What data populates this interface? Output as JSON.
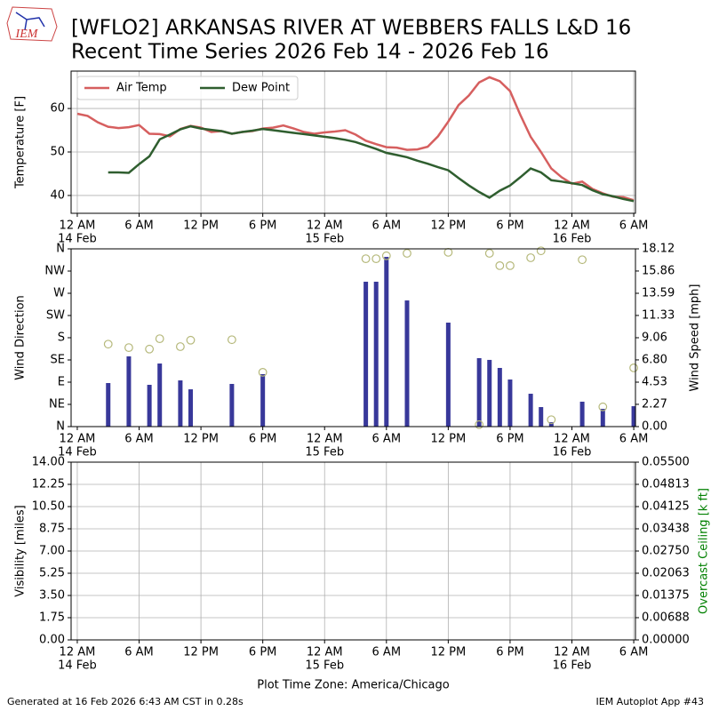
{
  "header": {
    "logo_text": "IEM",
    "title": [
      "[WFLO2] ARKANSAS RIVER  AT WEBBERS FALLS L&D 16",
      "Recent Time Series 2026 Feb 14 - 2026 Feb 16"
    ]
  },
  "footer": {
    "left": "Generated at 16 Feb 2026 6:43 AM CST in 0.28s",
    "right": "IEM Autoplot App #43"
  },
  "chart_data": [
    {
      "type": "line",
      "ylabel": "Temperature [F]",
      "grid": true,
      "legend": "upper left",
      "xlim": [
        "2026-02-13T23:24",
        "2026-02-16T06:10"
      ],
      "xticks": [
        {
          "value": "2026-02-14T00:00",
          "label": "12 AM",
          "date": "14 Feb"
        },
        {
          "value": "2026-02-14T06:00",
          "label": "6 AM"
        },
        {
          "value": "2026-02-14T12:00",
          "label": "12 PM"
        },
        {
          "value": "2026-02-14T18:00",
          "label": "6 PM"
        },
        {
          "value": "2026-02-15T00:00",
          "label": "12 AM",
          "date": "15 Feb"
        },
        {
          "value": "2026-02-15T06:00",
          "label": "6 AM"
        },
        {
          "value": "2026-02-15T12:00",
          "label": "12 PM"
        },
        {
          "value": "2026-02-15T18:00",
          "label": "6 PM"
        },
        {
          "value": "2026-02-16T00:00",
          "label": "12 AM",
          "date": "16 Feb"
        },
        {
          "value": "2026-02-16T06:00",
          "label": "6 AM"
        }
      ],
      "ylim": [
        35.9,
        68.6
      ],
      "yticks": [
        40,
        50,
        60
      ],
      "x": [
        "2026-02-14T00:00",
        "2026-02-14T01:00",
        "2026-02-14T02:00",
        "2026-02-14T03:00",
        "2026-02-14T04:00",
        "2026-02-14T05:00",
        "2026-02-14T06:00",
        "2026-02-14T07:00",
        "2026-02-14T08:00",
        "2026-02-14T09:00",
        "2026-02-14T10:00",
        "2026-02-14T11:00",
        "2026-02-14T12:00",
        "2026-02-14T13:00",
        "2026-02-14T14:00",
        "2026-02-14T15:00",
        "2026-02-14T16:00",
        "2026-02-14T17:00",
        "2026-02-14T18:00",
        "2026-02-14T19:00",
        "2026-02-14T20:00",
        "2026-02-14T21:00",
        "2026-02-14T22:00",
        "2026-02-14T23:00",
        "2026-02-15T00:00",
        "2026-02-15T01:00",
        "2026-02-15T02:00",
        "2026-02-15T03:00",
        "2026-02-15T04:00",
        "2026-02-15T05:00",
        "2026-02-15T06:00",
        "2026-02-15T07:00",
        "2026-02-15T08:00",
        "2026-02-15T09:00",
        "2026-02-15T10:00",
        "2026-02-15T11:00",
        "2026-02-15T12:00",
        "2026-02-15T13:00",
        "2026-02-15T14:00",
        "2026-02-15T15:00",
        "2026-02-15T16:00",
        "2026-02-15T17:00",
        "2026-02-15T18:00",
        "2026-02-15T19:00",
        "2026-02-15T20:00",
        "2026-02-15T21:00",
        "2026-02-15T22:00",
        "2026-02-15T23:00",
        "2026-02-16T00:00",
        "2026-02-16T01:00",
        "2026-02-16T02:00",
        "2026-02-16T03:00",
        "2026-02-16T04:00",
        "2026-02-16T05:00",
        "2026-02-16T06:00"
      ],
      "series": [
        {
          "name": "Air Temp",
          "color": "#d65f5f",
          "values": [
            58.8,
            58.3,
            56.8,
            55.8,
            55.5,
            55.7,
            56.2,
            54.2,
            54.1,
            53.6,
            55.3,
            56.0,
            55.6,
            54.6,
            54.8,
            54.2,
            54.6,
            54.8,
            55.4,
            55.6,
            56.1,
            55.4,
            54.6,
            54.2,
            54.5,
            54.7,
            55.0,
            54.0,
            52.6,
            51.8,
            51.1,
            51.0,
            50.5,
            50.6,
            51.2,
            53.6,
            57.0,
            60.8,
            63.0,
            66.0,
            67.2,
            66.3,
            64.0,
            58.5,
            53.5,
            50.0,
            46.2,
            44.2,
            42.7,
            43.2,
            41.5,
            40.5,
            39.7,
            39.6,
            38.9
          ]
        },
        {
          "name": "Dew Point",
          "color": "#2f5e2f",
          "values": [
            null,
            null,
            null,
            45.3,
            45.3,
            45.2,
            47.2,
            49.0,
            52.9,
            54.0,
            55.2,
            55.9,
            55.4,
            55.1,
            54.8,
            54.2,
            54.6,
            54.9,
            55.3,
            55.0,
            54.7,
            54.4,
            54.1,
            53.8,
            53.5,
            53.2,
            52.8,
            52.3,
            51.5,
            50.7,
            49.8,
            49.3,
            48.8,
            48.0,
            47.3,
            46.5,
            45.8,
            44.0,
            42.3,
            40.8,
            39.5,
            41.1,
            42.3,
            44.2,
            46.2,
            45.3,
            43.5,
            43.2,
            42.8,
            42.4,
            41.2,
            40.3,
            39.8,
            39.2,
            38.7
          ]
        }
      ]
    },
    {
      "type": "bar",
      "ylabel": "Wind Direction",
      "y2label": "Wind Speed [mph]",
      "grid": false,
      "xlim": [
        "2026-02-13T23:24",
        "2026-02-16T06:10"
      ],
      "xticks": [
        {
          "value": "2026-02-14T00:00",
          "label": "12 AM",
          "date": "14 Feb"
        },
        {
          "value": "2026-02-14T06:00",
          "label": "6 AM"
        },
        {
          "value": "2026-02-14T12:00",
          "label": "12 PM"
        },
        {
          "value": "2026-02-14T18:00",
          "label": "6 PM"
        },
        {
          "value": "2026-02-15T00:00",
          "label": "12 AM",
          "date": "15 Feb"
        },
        {
          "value": "2026-02-15T06:00",
          "label": "6 AM"
        },
        {
          "value": "2026-02-15T12:00",
          "label": "12 PM"
        },
        {
          "value": "2026-02-15T18:00",
          "label": "6 PM"
        },
        {
          "value": "2026-02-16T00:00",
          "label": "12 AM",
          "date": "16 Feb"
        },
        {
          "value": "2026-02-16T06:00",
          "label": "6 AM"
        }
      ],
      "ylim": [
        0,
        360
      ],
      "yticks": [
        {
          "value": 0,
          "label": "N"
        },
        {
          "value": 45,
          "label": "NE"
        },
        {
          "value": 90,
          "label": "E"
        },
        {
          "value": 135,
          "label": "SE"
        },
        {
          "value": 180,
          "label": "S"
        },
        {
          "value": 225,
          "label": "SW"
        },
        {
          "value": 270,
          "label": "W"
        },
        {
          "value": 315,
          "label": "NW"
        },
        {
          "value": 360,
          "label": "N"
        }
      ],
      "y2lim": [
        0,
        18.12
      ],
      "y2ticks": [
        {
          "value": 0,
          "label": "0.00"
        },
        {
          "value": 2.27,
          "label": "2.27"
        },
        {
          "value": 4.53,
          "label": "4.53"
        },
        {
          "value": 6.8,
          "label": "6.80"
        },
        {
          "value": 9.06,
          "label": "9.06"
        },
        {
          "value": 11.33,
          "label": "11.33"
        },
        {
          "value": 13.59,
          "label": "13.59"
        },
        {
          "value": 15.86,
          "label": "15.86"
        },
        {
          "value": 18.12,
          "label": "18.12"
        }
      ],
      "x": [
        "2026-02-14T03:00",
        "2026-02-14T05:00",
        "2026-02-14T07:00",
        "2026-02-14T08:00",
        "2026-02-14T10:00",
        "2026-02-14T11:00",
        "2026-02-14T15:00",
        "2026-02-14T18:00",
        "2026-02-15T04:00",
        "2026-02-15T05:00",
        "2026-02-15T06:00",
        "2026-02-15T08:00",
        "2026-02-15T12:00",
        "2026-02-15T15:00",
        "2026-02-15T16:00",
        "2026-02-15T17:00",
        "2026-02-15T18:00",
        "2026-02-15T20:00",
        "2026-02-15T21:00",
        "2026-02-15T22:00",
        "2026-02-16T01:00",
        "2026-02-16T03:00",
        "2026-02-16T06:00"
      ],
      "series": [
        {
          "type": "bar",
          "axis": "y2",
          "color": "#38389a",
          "values": [
            4.44,
            7.16,
            4.26,
            6.43,
            4.71,
            3.8,
            4.35,
            5.35,
            14.77,
            14.77,
            17.3,
            12.86,
            10.6,
            6.98,
            6.8,
            5.98,
            4.8,
            3.35,
            1.99,
            0.45,
            2.54,
            1.81,
            2.08
          ]
        },
        {
          "type": "scatter",
          "color": "#b5b87a",
          "values": [
            167,
            160,
            157,
            178,
            162,
            175,
            176,
            110,
            340,
            340,
            346,
            351,
            353,
            4,
            351,
            326,
            326,
            342,
            356,
            14,
            338,
            40,
            119
          ]
        }
      ]
    },
    {
      "type": "line",
      "ylabel": "Visibility [miles]",
      "y2label": "Overcast Ceiling [k ft]",
      "y2label_color": "green",
      "xlabel": "Plot Time Zone: America/Chicago",
      "grid": true,
      "xlim": [
        "2026-02-13T23:24",
        "2026-02-16T06:10"
      ],
      "xticks": [
        {
          "value": "2026-02-14T00:00",
          "label": "12 AM",
          "date": "14 Feb"
        },
        {
          "value": "2026-02-14T06:00",
          "label": "6 AM"
        },
        {
          "value": "2026-02-14T12:00",
          "label": "12 PM"
        },
        {
          "value": "2026-02-14T18:00",
          "label": "6 PM"
        },
        {
          "value": "2026-02-15T00:00",
          "label": "12 AM",
          "date": "15 Feb"
        },
        {
          "value": "2026-02-15T06:00",
          "label": "6 AM"
        },
        {
          "value": "2026-02-15T12:00",
          "label": "12 PM"
        },
        {
          "value": "2026-02-15T18:00",
          "label": "6 PM"
        },
        {
          "value": "2026-02-16T00:00",
          "label": "12 AM",
          "date": "16 Feb"
        },
        {
          "value": "2026-02-16T06:00",
          "label": "6 AM"
        }
      ],
      "ylim": [
        0,
        14
      ],
      "yticks": [
        {
          "value": 0,
          "label": "0.00"
        },
        {
          "value": 1.75,
          "label": "1.75"
        },
        {
          "value": 3.5,
          "label": "3.50"
        },
        {
          "value": 5.25,
          "label": "5.25"
        },
        {
          "value": 7,
          "label": "7.00"
        },
        {
          "value": 8.75,
          "label": "8.75"
        },
        {
          "value": 10.5,
          "label": "10.50"
        },
        {
          "value": 12.25,
          "label": "12.25"
        },
        {
          "value": 14,
          "label": "14.00"
        }
      ],
      "y2lim": [
        0,
        0.055
      ],
      "y2ticks": [
        {
          "value": 0,
          "label": "0.00000"
        },
        {
          "value": 0.00688,
          "label": "0.00688"
        },
        {
          "value": 0.01375,
          "label": "0.01375"
        },
        {
          "value": 0.02063,
          "label": "0.02063"
        },
        {
          "value": 0.0275,
          "label": "0.02750"
        },
        {
          "value": 0.03438,
          "label": "0.03438"
        },
        {
          "value": 0.04125,
          "label": "0.04125"
        },
        {
          "value": 0.04813,
          "label": "0.04813"
        },
        {
          "value": 0.055,
          "label": "0.05500"
        }
      ],
      "series": []
    }
  ]
}
